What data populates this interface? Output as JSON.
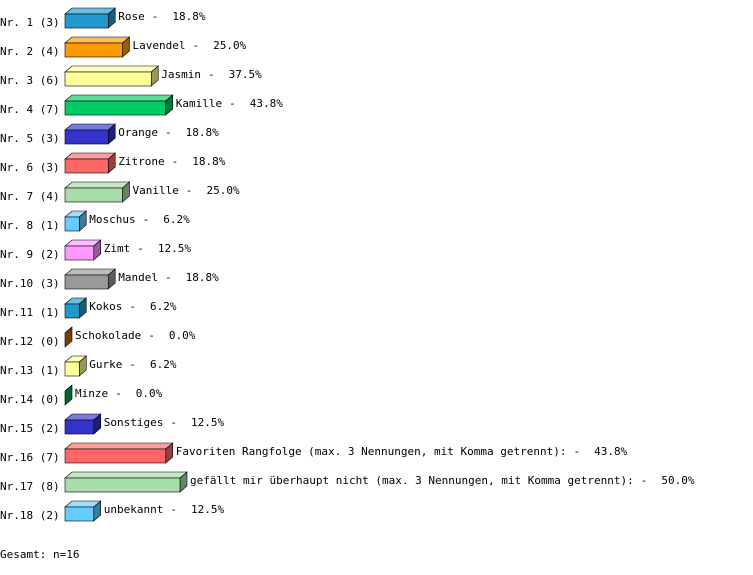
{
  "chart_data": {
    "type": "bar",
    "categories": [
      "Nr. 1 (3)",
      "Nr. 2 (4)",
      "Nr. 3 (6)",
      "Nr. 4 (7)",
      "Nr. 5 (3)",
      "Nr. 6 (3)",
      "Nr. 7 (4)",
      "Nr. 8 (1)",
      "Nr. 9 (2)",
      "Nr.10 (3)",
      "Nr.11 (1)",
      "Nr.12 (0)",
      "Nr.13 (1)",
      "Nr.14 (0)",
      "Nr.15 (2)",
      "Nr.16 (7)",
      "Nr.17 (8)",
      "Nr.18 (2)"
    ],
    "names": [
      "Rose",
      "Lavendel",
      "Jasmin",
      "Kamille",
      "Orange",
      "Zitrone",
      "Vanille",
      "Moschus",
      "Zimt",
      "Mandel",
      "Kokos",
      "Schokolade",
      "Gurke",
      "Minze",
      "Sonstiges",
      "Favoriten Rangfolge (max. 3 Nennungen, mit Komma getrennt):",
      "gefällt mir überhaupt nicht (max. 3 Nennungen, mit Komma getrennt):",
      "unbekannt"
    ],
    "separator": "-",
    "values": [
      18.8,
      25.0,
      37.5,
      43.8,
      18.8,
      18.8,
      25.0,
      6.2,
      12.5,
      18.8,
      6.2,
      0.0,
      6.2,
      0.0,
      12.5,
      43.8,
      50.0,
      12.5
    ],
    "value_labels": [
      "18.8%",
      "25.0%",
      "37.5%",
      "43.8%",
      "18.8%",
      "18.8%",
      "25.0%",
      "6.2%",
      "12.5%",
      "18.8%",
      "6.2%",
      "0.0%",
      "6.2%",
      "0.0%",
      "12.5%",
      "43.8%",
      "50.0%",
      "12.5%"
    ],
    "colors": [
      "#2299cc",
      "#ff9900",
      "#ffff99",
      "#00cc66",
      "#3333cc",
      "#ff6666",
      "#a8dca8",
      "#66ccff",
      "#ff99ff",
      "#999999",
      "#2299cc",
      "#cc6600",
      "#ffff99",
      "#00aa44",
      "#3333cc",
      "#ff6666",
      "#a8dca8",
      "#66ccff"
    ],
    "footer": "Gesamt: n=16"
  }
}
